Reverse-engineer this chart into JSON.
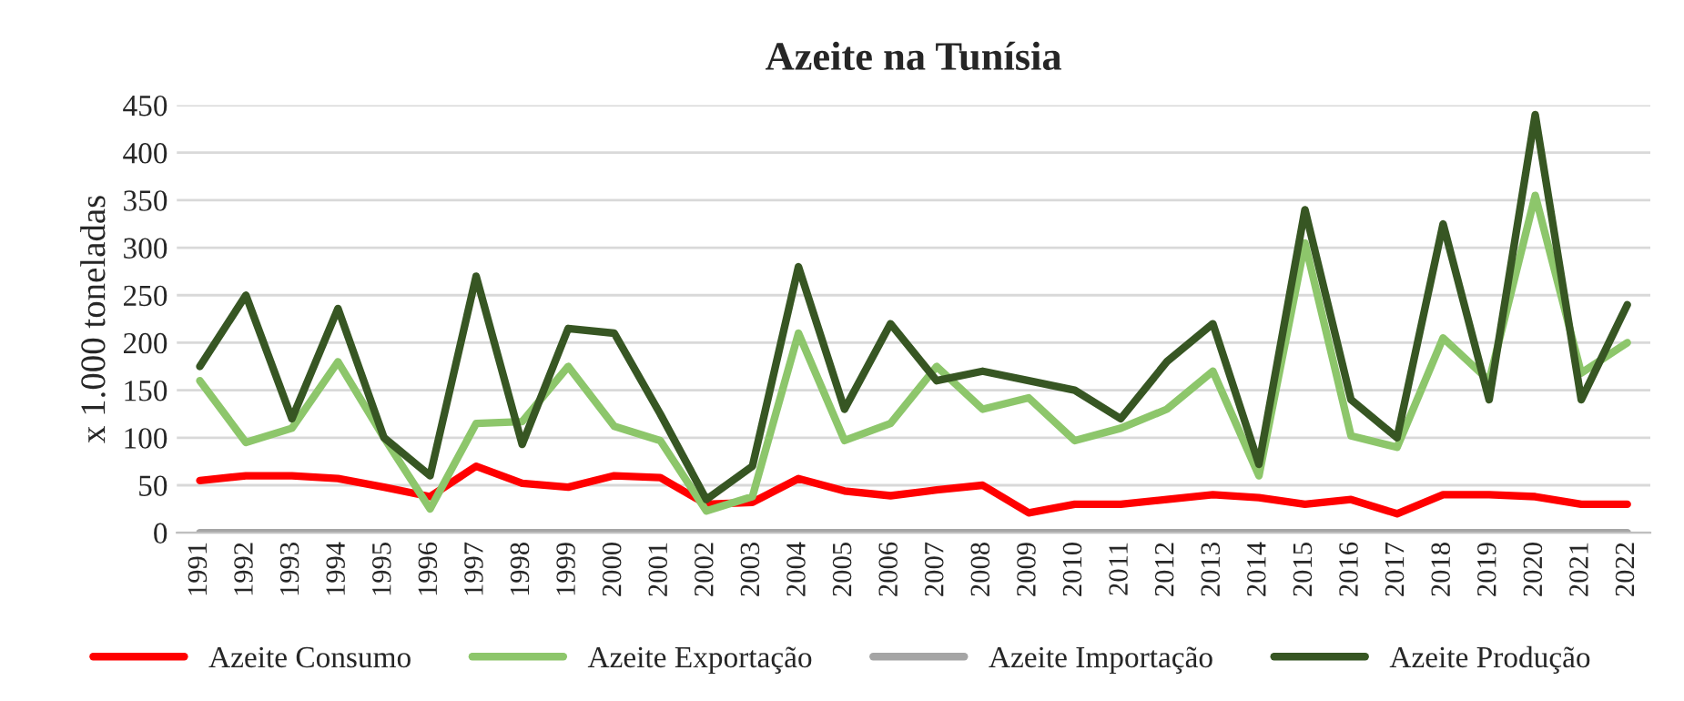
{
  "chart_data": {
    "type": "line",
    "title": "Azeite na Tunísia",
    "ylabel": "x 1.000 toneladas",
    "categories": [
      "1991",
      "1992",
      "1993",
      "1994",
      "1995",
      "1996",
      "1997",
      "1998",
      "1999",
      "2000",
      "2001",
      "2002",
      "2003",
      "2004",
      "2005",
      "2006",
      "2007",
      "2008",
      "2009",
      "2010",
      "2011",
      "2012",
      "2013",
      "2014",
      "2015",
      "2016",
      "2017",
      "2018",
      "2019",
      "2020",
      "2021",
      "2022"
    ],
    "series": [
      {
        "name": "Azeite Consumo",
        "color": "#ff0000",
        "values": [
          55,
          60,
          60,
          57,
          48,
          38,
          70,
          52,
          48,
          60,
          58,
          30,
          32,
          57,
          44,
          39,
          45,
          50,
          21,
          30,
          30,
          35,
          40,
          37,
          30,
          35,
          20,
          40,
          40,
          38,
          30,
          30
        ]
      },
      {
        "name": "Azeite Exportação",
        "color": "#8dc66b",
        "values": [
          160,
          95,
          110,
          180,
          100,
          25,
          115,
          117,
          175,
          112,
          97,
          23,
          38,
          210,
          97,
          115,
          175,
          130,
          142,
          97,
          110,
          130,
          170,
          60,
          305,
          102,
          90,
          205,
          160,
          355,
          168,
          200
        ]
      },
      {
        "name": "Azeite Importação",
        "color": "#a5a5a5",
        "values": [
          0,
          0,
          0,
          0,
          0,
          0,
          0,
          0,
          0,
          0,
          0,
          0,
          0,
          0,
          0,
          0,
          0,
          0,
          0,
          0,
          0,
          0,
          0,
          0,
          0,
          0,
          0,
          0,
          0,
          0,
          0,
          0
        ]
      },
      {
        "name": "Azeite Produção",
        "color": "#375623",
        "values": [
          175,
          250,
          120,
          236,
          100,
          60,
          270,
          93,
          215,
          210,
          125,
          35,
          70,
          280,
          130,
          220,
          160,
          170,
          160,
          150,
          120,
          180,
          220,
          72,
          340,
          140,
          100,
          325,
          140,
          440,
          140,
          240
        ]
      }
    ],
    "ylim": [
      0,
      450
    ],
    "yticks": [
      0,
      50,
      100,
      150,
      200,
      250,
      300,
      350,
      400,
      450
    ],
    "grid": "y",
    "legend": "bottom",
    "marker": "none",
    "line_style": "solid"
  }
}
